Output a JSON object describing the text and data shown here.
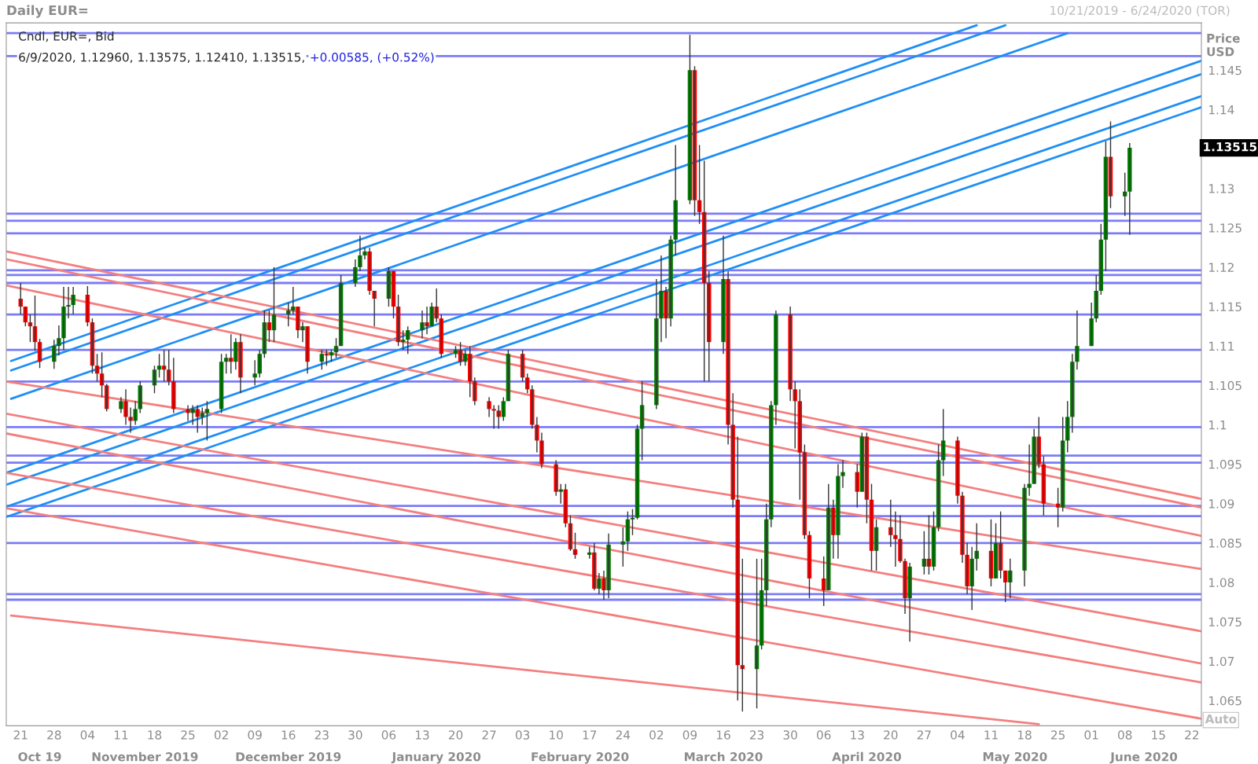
{
  "chart_data": {
    "type": "candlestick",
    "title": "Daily EUR=",
    "ylabel": "Price\nUSD",
    "annotations": [
      "10/21/2019 - 6/24/2020 (TOR)",
      "Cndl, EUR=, Bid",
      "6/9/2020, 1.12960, 1.13575, 1.12410, 1.13515,",
      "+0.00585, (+0.52%)",
      "Auto",
      "1.13515"
    ],
    "x": [
      "2019-10-21",
      "2019-10-22",
      "2019-10-23",
      "2019-10-24",
      "2019-10-25",
      "2019-10-28",
      "2019-10-29",
      "2019-10-30",
      "2019-10-31",
      "2019-11-01",
      "2019-11-04",
      "2019-11-05",
      "2019-11-06",
      "2019-11-07",
      "2019-11-08",
      "2019-11-11",
      "2019-11-12",
      "2019-11-13",
      "2019-11-14",
      "2019-11-15",
      "2019-11-18",
      "2019-11-19",
      "2019-11-20",
      "2019-11-21",
      "2019-11-22",
      "2019-11-25",
      "2019-11-26",
      "2019-11-27",
      "2019-11-28",
      "2019-11-29",
      "2019-12-02",
      "2019-12-03",
      "2019-12-04",
      "2019-12-05",
      "2019-12-06",
      "2019-12-09",
      "2019-12-10",
      "2019-12-11",
      "2019-12-12",
      "2019-12-13",
      "2019-12-16",
      "2019-12-17",
      "2019-12-18",
      "2019-12-19",
      "2019-12-20",
      "2019-12-23",
      "2019-12-24",
      "2019-12-25",
      "2019-12-26",
      "2019-12-27",
      "2019-12-30",
      "2019-12-31",
      "2020-01-01",
      "2020-01-02",
      "2020-01-03",
      "2020-01-06",
      "2020-01-07",
      "2020-01-08",
      "2020-01-09",
      "2020-01-10",
      "2020-01-13",
      "2020-01-14",
      "2020-01-15",
      "2020-01-16",
      "2020-01-17",
      "2020-01-20",
      "2020-01-21",
      "2020-01-22",
      "2020-01-23",
      "2020-01-24",
      "2020-01-27",
      "2020-01-28",
      "2020-01-29",
      "2020-01-30",
      "2020-01-31",
      "2020-02-03",
      "2020-02-04",
      "2020-02-05",
      "2020-02-06",
      "2020-02-07",
      "2020-02-10",
      "2020-02-11",
      "2020-02-12",
      "2020-02-13",
      "2020-02-14",
      "2020-02-17",
      "2020-02-18",
      "2020-02-19",
      "2020-02-20",
      "2020-02-21",
      "2020-02-24",
      "2020-02-25",
      "2020-02-26",
      "2020-02-27",
      "2020-02-28",
      "2020-03-02",
      "2020-03-03",
      "2020-03-04",
      "2020-03-05",
      "2020-03-06",
      "2020-03-09",
      "2020-03-10",
      "2020-03-11",
      "2020-03-12",
      "2020-03-13",
      "2020-03-16",
      "2020-03-17",
      "2020-03-18",
      "2020-03-19",
      "2020-03-20",
      "2020-03-23",
      "2020-03-24",
      "2020-03-25",
      "2020-03-26",
      "2020-03-27",
      "2020-03-30",
      "2020-03-31",
      "2020-04-01",
      "2020-04-02",
      "2020-04-03",
      "2020-04-06",
      "2020-04-07",
      "2020-04-08",
      "2020-04-09",
      "2020-04-10",
      "2020-04-13",
      "2020-04-14",
      "2020-04-15",
      "2020-04-16",
      "2020-04-17",
      "2020-04-20",
      "2020-04-21",
      "2020-04-22",
      "2020-04-23",
      "2020-04-24",
      "2020-04-27",
      "2020-04-28",
      "2020-04-29",
      "2020-04-30",
      "2020-05-01",
      "2020-05-04",
      "2020-05-05",
      "2020-05-06",
      "2020-05-07",
      "2020-05-08",
      "2020-05-11",
      "2020-05-12",
      "2020-05-13",
      "2020-05-14",
      "2020-05-15",
      "2020-05-18",
      "2020-05-19",
      "2020-05-20",
      "2020-05-21",
      "2020-05-22",
      "2020-05-25",
      "2020-05-26",
      "2020-05-27",
      "2020-05-28",
      "2020-05-29",
      "2020-06-01",
      "2020-06-02",
      "2020-06-03",
      "2020-06-04",
      "2020-06-05",
      "2020-06-08",
      "2020-06-09"
    ],
    "ohlc": [
      [
        1.116,
        1.118,
        1.114,
        1.115
      ],
      [
        1.115,
        1.115,
        1.1125,
        1.113
      ],
      [
        1.113,
        1.114,
        1.1105,
        1.1125
      ],
      [
        1.1125,
        1.1164,
        1.1094,
        1.1105
      ],
      [
        1.1105,
        1.1109,
        1.1072,
        1.108
      ],
      [
        1.108,
        1.1108,
        1.1071,
        1.11
      ],
      [
        1.11,
        1.1126,
        1.1088,
        1.111
      ],
      [
        1.111,
        1.1175,
        1.1095,
        1.115
      ],
      [
        1.115,
        1.1175,
        1.1135,
        1.1152
      ],
      [
        1.1152,
        1.1175,
        1.114,
        1.1165
      ],
      [
        1.1165,
        1.1176,
        1.1125,
        1.113
      ],
      [
        1.113,
        1.1135,
        1.1065,
        1.1075
      ],
      [
        1.1075,
        1.109,
        1.1055,
        1.1065
      ],
      [
        1.1065,
        1.1092,
        1.1035,
        1.105
      ],
      [
        1.105,
        1.1052,
        1.1017,
        1.102
      ],
      [
        1.102,
        1.1035,
        1.1015,
        1.103
      ],
      [
        1.103,
        1.1045,
        1.1,
        1.101
      ],
      [
        1.101,
        1.1022,
        1.099,
        1.1005
      ],
      [
        1.1005,
        1.103,
        1.1,
        1.102
      ],
      [
        1.102,
        1.1055,
        1.1015,
        1.105
      ],
      [
        1.105,
        1.1075,
        1.104,
        1.107
      ],
      [
        1.107,
        1.109,
        1.106,
        1.1075
      ],
      [
        1.1075,
        1.1095,
        1.1055,
        1.107
      ],
      [
        1.107,
        1.1095,
        1.105,
        1.1055
      ],
      [
        1.1055,
        1.1085,
        1.1015,
        1.102
      ],
      [
        1.102,
        1.1025,
        1.1005,
        1.1015
      ],
      [
        1.1015,
        1.1025,
        1.1,
        1.102
      ],
      [
        1.102,
        1.1025,
        1.099,
        1.101
      ],
      [
        1.101,
        1.1022,
        1.1,
        1.1015
      ],
      [
        1.1015,
        1.103,
        1.098,
        1.102
      ],
      [
        1.102,
        1.109,
        1.1015,
        1.108
      ],
      [
        1.108,
        1.109,
        1.1065,
        1.1085
      ],
      [
        1.1085,
        1.1115,
        1.1065,
        1.108
      ],
      [
        1.108,
        1.111,
        1.107,
        1.1105
      ],
      [
        1.1105,
        1.1115,
        1.104,
        1.106
      ],
      [
        1.106,
        1.1082,
        1.105,
        1.1065
      ],
      [
        1.1065,
        1.1095,
        1.106,
        1.109
      ],
      [
        1.109,
        1.1145,
        1.1085,
        1.113
      ],
      [
        1.113,
        1.1145,
        1.1105,
        1.112
      ],
      [
        1.112,
        1.12,
        1.1105,
        1.114
      ],
      [
        1.114,
        1.1155,
        1.1125,
        1.1145
      ],
      [
        1.1145,
        1.1175,
        1.114,
        1.115
      ],
      [
        1.115,
        1.115,
        1.111,
        1.112
      ],
      [
        1.112,
        1.113,
        1.1105,
        1.1125
      ],
      [
        1.1125,
        1.1125,
        1.1065,
        1.108
      ],
      [
        1.108,
        1.1095,
        1.107,
        1.109
      ],
      [
        1.109,
        1.1095,
        1.1075,
        1.1088
      ],
      [
        1.1088,
        1.1095,
        1.108,
        1.1092
      ],
      [
        1.1092,
        1.111,
        1.1085,
        1.11
      ],
      [
        1.11,
        1.119,
        1.11,
        1.118
      ],
      [
        1.118,
        1.121,
        1.1175,
        1.12
      ],
      [
        1.12,
        1.124,
        1.1195,
        1.1215
      ],
      [
        1.1215,
        1.1225,
        1.121,
        1.122
      ],
      [
        1.122,
        1.1225,
        1.1165,
        1.117
      ],
      [
        1.117,
        1.117,
        1.1125,
        1.116
      ],
      [
        1.116,
        1.12,
        1.115,
        1.1195
      ],
      [
        1.1195,
        1.1195,
        1.1135,
        1.115
      ],
      [
        1.115,
        1.1165,
        1.11,
        1.1105
      ],
      [
        1.1105,
        1.112,
        1.1095,
        1.1108
      ],
      [
        1.1108,
        1.1125,
        1.109,
        1.112
      ],
      [
        1.112,
        1.1145,
        1.111,
        1.113
      ],
      [
        1.113,
        1.115,
        1.1115,
        1.1125
      ],
      [
        1.1125,
        1.1155,
        1.1125,
        1.115
      ],
      [
        1.115,
        1.1173,
        1.113,
        1.1135
      ],
      [
        1.1135,
        1.114,
        1.1085,
        1.109
      ],
      [
        1.109,
        1.11,
        1.1085,
        1.1095
      ],
      [
        1.1095,
        1.1105,
        1.1075,
        1.108
      ],
      [
        1.108,
        1.1095,
        1.1075,
        1.109
      ],
      [
        1.109,
        1.11,
        1.1035,
        1.1055
      ],
      [
        1.1055,
        1.106,
        1.1025,
        1.103
      ],
      [
        1.103,
        1.1035,
        1.101,
        1.102
      ],
      [
        1.102,
        1.1025,
        1.0995,
        1.1018
      ],
      [
        1.1018,
        1.1025,
        1.0995,
        1.101
      ],
      [
        1.101,
        1.1035,
        1.1005,
        1.103
      ],
      [
        1.103,
        1.1095,
        1.103,
        1.109
      ],
      [
        1.109,
        1.1095,
        1.1055,
        1.106
      ],
      [
        1.106,
        1.1065,
        1.104,
        1.1045
      ],
      [
        1.1045,
        1.105,
        1.0995,
        1.1
      ],
      [
        1.1,
        1.101,
        1.0965,
        1.098
      ],
      [
        1.098,
        1.099,
        1.0945,
        1.095
      ],
      [
        1.095,
        1.0955,
        1.091,
        1.0915
      ],
      [
        1.0915,
        1.0925,
        1.09,
        1.0918
      ],
      [
        1.0918,
        1.0925,
        1.087,
        1.0875
      ],
      [
        1.0875,
        1.0885,
        1.084,
        1.0842
      ],
      [
        1.0842,
        1.0863,
        1.083,
        1.0835
      ],
      [
        1.0835,
        1.0845,
        1.083,
        1.0838
      ],
      [
        1.0838,
        1.085,
        1.079,
        1.0792
      ],
      [
        1.0792,
        1.0812,
        1.0785,
        1.0805
      ],
      [
        1.0805,
        1.0815,
        1.0778,
        1.079
      ],
      [
        1.079,
        1.0862,
        1.078,
        1.0848
      ],
      [
        1.0848,
        1.087,
        1.082,
        1.0852
      ],
      [
        1.0852,
        1.089,
        1.084,
        1.088
      ],
      [
        1.088,
        1.0893,
        1.086,
        1.0882
      ],
      [
        1.0882,
        1.1,
        1.088,
        1.0995
      ],
      [
        1.0995,
        1.1055,
        1.0955,
        1.1025
      ],
      [
        1.1025,
        1.1185,
        1.102,
        1.1135
      ],
      [
        1.1135,
        1.1215,
        1.1105,
        1.117
      ],
      [
        1.117,
        1.1175,
        1.111,
        1.1135
      ],
      [
        1.1135,
        1.124,
        1.1125,
        1.1235
      ],
      [
        1.1235,
        1.1355,
        1.1215,
        1.1285
      ],
      [
        1.1285,
        1.1495,
        1.128,
        1.145
      ],
      [
        1.145,
        1.1455,
        1.1265,
        1.1285
      ],
      [
        1.1285,
        1.1355,
        1.1255,
        1.127
      ],
      [
        1.127,
        1.1335,
        1.1055,
        1.118
      ],
      [
        1.118,
        1.1195,
        1.1055,
        1.1105
      ],
      [
        1.1105,
        1.124,
        1.109,
        1.1185
      ],
      [
        1.1185,
        1.1195,
        1.0975,
        1.1
      ],
      [
        1.1,
        1.104,
        1.0895,
        1.0905
      ],
      [
        1.0905,
        1.0985,
        1.065,
        1.0695
      ],
      [
        1.0695,
        1.083,
        1.0636,
        1.069
      ],
      [
        1.069,
        1.083,
        1.064,
        1.072
      ],
      [
        1.072,
        1.083,
        1.0715,
        1.079
      ],
      [
        1.079,
        1.09,
        1.077,
        1.088
      ],
      [
        1.088,
        1.103,
        1.087,
        1.1025
      ],
      [
        1.1025,
        1.1145,
        1.1,
        1.114
      ],
      [
        1.114,
        1.115,
        1.103,
        1.1045
      ],
      [
        1.1045,
        1.1055,
        1.097,
        1.103
      ],
      [
        1.103,
        1.1045,
        1.0905,
        1.0965
      ],
      [
        1.0965,
        1.0975,
        1.0855,
        1.086
      ],
      [
        1.086,
        1.0865,
        1.078,
        1.0805
      ],
      [
        1.0805,
        1.0833,
        1.077,
        1.079
      ],
      [
        1.079,
        1.0925,
        1.079,
        1.0895
      ],
      [
        1.0895,
        1.0905,
        1.083,
        1.086
      ],
      [
        1.086,
        1.095,
        1.083,
        1.0935
      ],
      [
        1.0935,
        1.0955,
        1.092,
        1.094
      ],
      [
        1.094,
        1.095,
        1.0895,
        1.0915
      ],
      [
        1.0915,
        1.099,
        1.0915,
        1.0985
      ],
      [
        1.0985,
        1.099,
        1.0875,
        1.0905
      ],
      [
        1.0905,
        1.0925,
        1.0815,
        1.084
      ],
      [
        1.084,
        1.088,
        1.0815,
        1.087
      ],
      [
        1.087,
        1.0905,
        1.0845,
        1.086
      ],
      [
        1.086,
        1.089,
        1.082,
        1.0855
      ],
      [
        1.0855,
        1.0885,
        1.0825,
        1.0827
      ],
      [
        1.0827,
        1.083,
        1.076,
        1.078
      ],
      [
        1.078,
        1.0825,
        1.0725,
        1.082
      ],
      [
        1.082,
        1.0865,
        1.081,
        1.083
      ],
      [
        1.083,
        1.0885,
        1.081,
        1.082
      ],
      [
        1.082,
        1.089,
        1.0815,
        1.087
      ],
      [
        1.087,
        1.0975,
        1.0865,
        1.0955
      ],
      [
        1.0955,
        1.102,
        1.0935,
        1.098
      ],
      [
        1.098,
        1.0985,
        1.09,
        1.091
      ],
      [
        1.091,
        1.0915,
        1.0825,
        1.0835
      ],
      [
        1.0835,
        1.085,
        1.0785,
        1.0795
      ],
      [
        1.0795,
        1.0845,
        1.0765,
        1.083
      ],
      [
        1.083,
        1.0875,
        1.0815,
        1.084
      ],
      [
        1.084,
        1.088,
        1.0795,
        1.0805
      ],
      [
        1.0805,
        1.0875,
        1.0805,
        1.085
      ],
      [
        1.085,
        1.089,
        1.0805,
        1.0815
      ],
      [
        1.0815,
        1.0815,
        1.0775,
        1.08
      ],
      [
        1.08,
        1.083,
        1.078,
        1.0815
      ],
      [
        1.0815,
        1.0925,
        1.0795,
        1.092
      ],
      [
        1.092,
        1.0975,
        1.091,
        1.0925
      ],
      [
        1.0925,
        1.0995,
        1.0925,
        1.0985
      ],
      [
        1.0985,
        1.101,
        1.0945,
        1.095
      ],
      [
        1.095,
        1.096,
        1.0885,
        1.09
      ],
      [
        1.09,
        1.092,
        1.087,
        1.0895
      ],
      [
        1.0895,
        1.101,
        1.089,
        1.098
      ],
      [
        1.098,
        1.103,
        1.0965,
        1.101
      ],
      [
        1.101,
        1.109,
        1.099,
        1.108
      ],
      [
        1.108,
        1.1145,
        1.107,
        1.11
      ],
      [
        1.11,
        1.1155,
        1.11,
        1.1135
      ],
      [
        1.1135,
        1.119,
        1.113,
        1.117
      ],
      [
        1.117,
        1.1255,
        1.1165,
        1.1235
      ],
      [
        1.1235,
        1.136,
        1.1195,
        1.134
      ],
      [
        1.134,
        1.1385,
        1.1275,
        1.129
      ],
      [
        1.129,
        1.132,
        1.1265,
        1.1296
      ],
      [
        1.1296,
        1.13575,
        1.1241,
        1.13515
      ]
    ],
    "colors": [
      "#ff0000",
      "#ff0000",
      "#ff0000",
      "#ff0000",
      "#ff0000",
      "#008000",
      "#008000",
      "#008000",
      "#008000",
      "#008000",
      "#ff0000",
      "#ff0000",
      "#ff0000",
      "#ff0000",
      "#ff0000",
      "#008000",
      "#ff0000",
      "#ff0000",
      "#008000",
      "#008000",
      "#008000",
      "#008000",
      "#ff0000",
      "#ff0000",
      "#ff0000",
      "#ff0000",
      "#008000",
      "#ff0000",
      "#008000",
      "#008000",
      "#008000",
      "#008000",
      "#ff0000",
      "#008000",
      "#ff0000",
      "#008000",
      "#008000",
      "#008000",
      "#ff0000",
      "#008000",
      "#008000",
      "#008000",
      "#ff0000",
      "#008000",
      "#ff0000",
      "#008000",
      "#ff0000",
      "#008000",
      "#008000",
      "#008000",
      "#008000",
      "#008000",
      "#008000",
      "#ff0000",
      "#ff0000",
      "#008000",
      "#ff0000",
      "#ff0000",
      "#008000",
      "#008000",
      "#008000",
      "#ff0000",
      "#008000",
      "#ff0000",
      "#ff0000",
      "#008000",
      "#ff0000",
      "#008000",
      "#ff0000",
      "#ff0000",
      "#ff0000",
      "#ff0000",
      "#ff0000",
      "#008000",
      "#008000",
      "#ff0000",
      "#ff0000",
      "#ff0000",
      "#ff0000",
      "#ff0000",
      "#ff0000",
      "#008000",
      "#ff0000",
      "#ff0000",
      "#ff0000",
      "#008000",
      "#ff0000",
      "#008000",
      "#ff0000",
      "#008000",
      "#008000",
      "#008000",
      "#008000",
      "#008000",
      "#008000",
      "#008000",
      "#008000",
      "#ff0000",
      "#008000",
      "#008000",
      "#008000",
      "#ff0000",
      "#ff0000",
      "#ff0000",
      "#ff0000",
      "#008000",
      "#ff0000",
      "#ff0000",
      "#ff0000",
      "#ff0000",
      "#008000",
      "#008000",
      "#008000",
      "#008000",
      "#008000",
      "#ff0000",
      "#ff0000",
      "#ff0000",
      "#ff0000",
      "#ff0000",
      "#ff0000",
      "#008000",
      "#ff0000",
      "#008000",
      "#008000",
      "#ff0000",
      "#008000",
      "#ff0000",
      "#ff0000",
      "#008000",
      "#ff0000",
      "#ff0000",
      "#ff0000",
      "#ff0000",
      "#008000",
      "#008000",
      "#ff0000",
      "#008000",
      "#008000",
      "#008000",
      "#ff0000",
      "#ff0000",
      "#ff0000",
      "#008000",
      "#008000",
      "#ff0000",
      "#008000",
      "#ff0000",
      "#ff0000",
      "#008000",
      "#008000",
      "#008000",
      "#008000",
      "#ff0000",
      "#ff0000",
      "#ff0000",
      "#008000",
      "#008000",
      "#008000",
      "#008000",
      "#008000",
      "#008000",
      "#008000",
      "#008000",
      "#ff0000",
      "#008000",
      "#008000"
    ],
    "series": [
      {
        "type": "line",
        "x": [
          "2019-10-19",
          "2020-05-08"
        ],
        "values": [
          1.1081,
          1.1507
        ],
        "color": "#1f8ff5"
      },
      {
        "type": "line",
        "x": [
          "2019-10-19",
          "2020-05-14"
        ],
        "values": [
          1.1069,
          1.1507
        ],
        "color": "#1f8ff5"
      },
      {
        "type": "line",
        "x": [
          "2019-10-19",
          "2020-05-27"
        ],
        "values": [
          1.1033,
          1.1497
        ],
        "color": "#1f8ff5"
      },
      {
        "type": "line",
        "x": [
          "2019-10-18",
          "2020-06-24"
        ],
        "values": [
          1.0939,
          1.1462
        ],
        "color": "#1f8ff5"
      },
      {
        "type": "line",
        "x": [
          "2019-10-18",
          "2020-06-24"
        ],
        "values": [
          1.0924,
          1.1445
        ],
        "color": "#1f8ff5"
      },
      {
        "type": "line",
        "x": [
          "2019-10-18",
          "2020-06-24"
        ],
        "values": [
          1.0896,
          1.1417
        ],
        "color": "#1f8ff5"
      },
      {
        "type": "line",
        "x": [
          "2019-10-18",
          "2020-06-24"
        ],
        "values": [
          1.0883,
          1.1403
        ],
        "color": "#1f8ff5"
      },
      {
        "type": "line",
        "x": [
          "2019-10-18",
          "2020-06-24"
        ],
        "values": [
          1.122,
          1.0906
        ],
        "color": "#f47f7f"
      },
      {
        "type": "line",
        "x": [
          "2019-10-18",
          "2020-06-24"
        ],
        "values": [
          1.121,
          1.0895
        ],
        "color": "#f47f7f"
      },
      {
        "type": "line",
        "x": [
          "2019-10-18",
          "2020-06-24"
        ],
        "values": [
          1.1177,
          1.0859
        ],
        "color": "#f47f7f"
      },
      {
        "type": "line",
        "x": [
          "2019-10-18",
          "2020-06-24"
        ],
        "values": [
          1.1055,
          1.0817
        ],
        "color": "#f47f7f"
      },
      {
        "type": "line",
        "x": [
          "2019-10-18",
          "2020-06-24"
        ],
        "values": [
          1.1014,
          1.0738
        ],
        "color": "#f47f7f"
      },
      {
        "type": "line",
        "x": [
          "2019-10-18",
          "2020-06-24"
        ],
        "values": [
          1.0989,
          1.0697
        ],
        "color": "#f47f7f"
      },
      {
        "type": "line",
        "x": [
          "2019-10-18",
          "2020-06-24"
        ],
        "values": [
          1.0939,
          1.0673
        ],
        "color": "#f47f7f"
      },
      {
        "type": "line",
        "x": [
          "2019-10-18",
          "2020-06-24"
        ],
        "values": [
          1.0894,
          1.0627
        ],
        "color": "#f47f7f"
      },
      {
        "type": "line",
        "x": [
          "2019-10-19",
          "2020-05-21"
        ],
        "values": [
          1.0758,
          1.062
        ],
        "color": "#f47f7f"
      }
    ],
    "ref_lines": [
      {
        "axis": "y",
        "value": 1.1497,
        "color": "#7b7bf7"
      },
      {
        "axis": "y",
        "value": 1.1468,
        "color": "#7b7bf7"
      },
      {
        "axis": "y",
        "value": 1.1268,
        "color": "#7b7bf7"
      },
      {
        "axis": "y",
        "value": 1.1259,
        "color": "#7b7bf7"
      },
      {
        "axis": "y",
        "value": 1.1243,
        "color": "#7b7bf7"
      },
      {
        "axis": "y",
        "value": 1.1196,
        "color": "#7b7bf7"
      },
      {
        "axis": "y",
        "value": 1.119,
        "color": "#7b7bf7"
      },
      {
        "axis": "y",
        "value": 1.118,
        "color": "#7b7bf7"
      },
      {
        "axis": "y",
        "value": 1.114,
        "color": "#7b7bf7"
      },
      {
        "axis": "y",
        "value": 1.1095,
        "color": "#7b7bf7"
      },
      {
        "axis": "y",
        "value": 1.1055,
        "color": "#7b7bf7"
      },
      {
        "axis": "y",
        "value": 1.0997,
        "color": "#7b7bf7"
      },
      {
        "axis": "y",
        "value": 1.0961,
        "color": "#7b7bf7"
      },
      {
        "axis": "y",
        "value": 1.0952,
        "color": "#7b7bf7"
      },
      {
        "axis": "y",
        "value": 1.0897,
        "color": "#7b7bf7"
      },
      {
        "axis": "y",
        "value": 1.0884,
        "color": "#7b7bf7"
      },
      {
        "axis": "y",
        "value": 1.085,
        "color": "#7b7bf7"
      },
      {
        "axis": "y",
        "value": 1.0785,
        "color": "#7b7bf7"
      },
      {
        "axis": "y",
        "value": 1.0778,
        "color": "#7b7bf7"
      }
    ],
    "xlim": [
      "2019-10-18",
      "2020-06-24"
    ],
    "ylim": [
      1.0618,
      1.151
    ],
    "yticks": [
      1.065,
      1.07,
      1.075,
      1.08,
      1.085,
      1.09,
      1.095,
      1.1,
      1.105,
      1.11,
      1.115,
      1.12,
      1.125,
      1.13,
      1.14,
      1.145
    ],
    "xticks": [
      {
        "value": "2019-10-21",
        "label": "21"
      },
      {
        "value": "2019-10-28",
        "label": "28"
      },
      {
        "value": "2019-11-04",
        "label": "04"
      },
      {
        "value": "2019-11-11",
        "label": "11"
      },
      {
        "value": "2019-11-18",
        "label": "18"
      },
      {
        "value": "2019-11-25",
        "label": "25"
      },
      {
        "value": "2019-12-02",
        "label": "02"
      },
      {
        "value": "2019-12-09",
        "label": "09"
      },
      {
        "value": "2019-12-16",
        "label": "16"
      },
      {
        "value": "2019-12-23",
        "label": "23"
      },
      {
        "value": "2019-12-30",
        "label": "30"
      },
      {
        "value": "2020-01-06",
        "label": "06"
      },
      {
        "value": "2020-01-13",
        "label": "13"
      },
      {
        "value": "2020-01-20",
        "label": "20"
      },
      {
        "value": "2020-01-27",
        "label": "27"
      },
      {
        "value": "2020-02-03",
        "label": "03"
      },
      {
        "value": "2020-02-10",
        "label": "10"
      },
      {
        "value": "2020-02-17",
        "label": "17"
      },
      {
        "value": "2020-02-24",
        "label": "24"
      },
      {
        "value": "2020-03-02",
        "label": "02"
      },
      {
        "value": "2020-03-09",
        "label": "09"
      },
      {
        "value": "2020-03-16",
        "label": "16"
      },
      {
        "value": "2020-03-23",
        "label": "23"
      },
      {
        "value": "2020-03-30",
        "label": "30"
      },
      {
        "value": "2020-04-06",
        "label": "06"
      },
      {
        "value": "2020-04-13",
        "label": "13"
      },
      {
        "value": "2020-04-20",
        "label": "20"
      },
      {
        "value": "2020-04-27",
        "label": "27"
      },
      {
        "value": "2020-05-04",
        "label": "04"
      },
      {
        "value": "2020-05-11",
        "label": "11"
      },
      {
        "value": "2020-05-18",
        "label": "18"
      },
      {
        "value": "2020-05-25",
        "label": "25"
      },
      {
        "value": "2020-06-01",
        "label": "01"
      },
      {
        "value": "2020-06-08",
        "label": "08"
      },
      {
        "value": "2020-06-15",
        "label": "15"
      },
      {
        "value": "2020-06-22",
        "label": "22"
      }
    ],
    "x2lim": [
      "2019-10-18",
      "2020-06-24"
    ],
    "x2ticks": [
      {
        "value": "2019-10-25",
        "label": "Oct 19"
      },
      {
        "value": "2019-11-16",
        "label": "November 2019"
      },
      {
        "value": "2019-12-16",
        "label": "December 2019"
      },
      {
        "value": "2020-01-16",
        "label": "January 2020"
      },
      {
        "value": "2020-02-15",
        "label": "February 2020"
      },
      {
        "value": "2020-03-16",
        "label": "March 2020"
      },
      {
        "value": "2020-04-15",
        "label": "April 2020"
      },
      {
        "value": "2020-05-16",
        "label": "May 2020"
      },
      {
        "value": "2020-06-12",
        "label": "June 2020"
      }
    ]
  }
}
